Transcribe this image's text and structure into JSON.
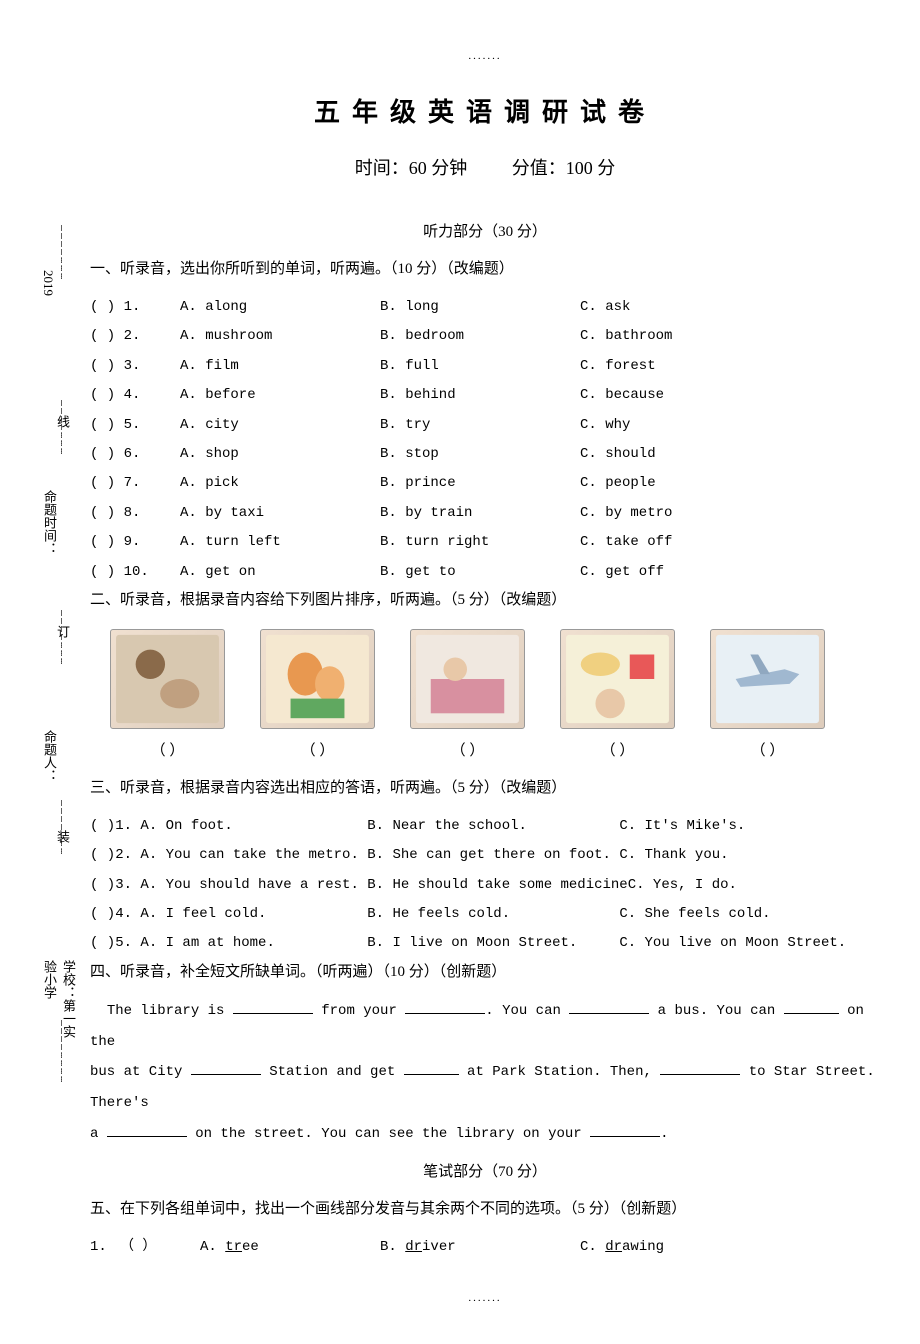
{
  "top_dots": ".......",
  "title": "五年级英语调研试卷",
  "subtitle_time": "时间：60 分钟",
  "subtitle_score": "分值：100 分",
  "listening_header": "听力部分（30 分）",
  "section1_instruction": "一、听录音，选出你所听到的单词，听两遍。（10 分）（改编题）",
  "section1_items": [
    {
      "n": "1",
      "a": "along",
      "b": "long",
      "c": "ask"
    },
    {
      "n": "2",
      "a": "mushroom",
      "b": "bedroom",
      "c": "bathroom"
    },
    {
      "n": "3",
      "a": "film",
      "b": "full",
      "c": "forest"
    },
    {
      "n": "4",
      "a": "before",
      "b": "behind",
      "c": "because"
    },
    {
      "n": "5",
      "a": "city",
      "b": "try",
      "c": "why"
    },
    {
      "n": "6",
      "a": "shop",
      "b": "stop",
      "c": "should"
    },
    {
      "n": "7",
      "a": "pick",
      "b": "prince",
      "c": "people"
    },
    {
      "n": "8",
      "a": "by taxi",
      "b": "by train",
      "c": "by metro"
    },
    {
      "n": "9",
      "a": "turn left",
      "b": "turn right",
      "c": "take off"
    },
    {
      "n": "10",
      "a": "get on",
      "b": "get to",
      "c": "get off"
    }
  ],
  "section2_instruction": "二、听录音，根据录音内容给下列图片排序，听两遍。（5 分）（改编题）",
  "paren_blank": "（     ）",
  "section3_instruction": "三、听录音，根据录音内容选出相应的答语，听两遍。（5 分）（改编题）",
  "section3_items": [
    {
      "n": "1",
      "a": "On foot.",
      "b": "Near the school.",
      "c": "It's Mike's."
    },
    {
      "n": "2",
      "a": "You can take the metro.",
      "b": "She can get there on foot.",
      "c": "Thank you."
    },
    {
      "n": "3",
      "a": "You should have a rest.",
      "b": "He should take some medicine",
      "c": "Yes, I do."
    },
    {
      "n": "4",
      "a": "I feel cold.",
      "b": "He feels cold.",
      "c": "She feels cold."
    },
    {
      "n": "5",
      "a": "I am at home.",
      "b": "I live on Moon Street.",
      "c": "You live on Moon Street."
    }
  ],
  "section4_instruction": "四、听录音，补全短文所缺单词。（听两遍）（10 分）（创新题）",
  "fill_prefix": "The library is ",
  "fill_t1": " from your ",
  "fill_t2": ". You can ",
  "fill_t3": " a bus. You can ",
  "fill_t4": " on the",
  "fill_line2_a": "bus at City ",
  "fill_line2_b": " Station and get ",
  "fill_line2_c": " at Park Station. Then, ",
  "fill_line2_d": " to Star Street. There's",
  "fill_line3_a": "a ",
  "fill_line3_b": " on the street. You can see the library on your ",
  "fill_line3_c": ".",
  "written_header": "笔试部分（70 分）",
  "section5_instruction": "五、在下列各组单词中，找出一个画线部分发音与其余两个不同的选项。（5 分）（创新题）",
  "section5_item": {
    "n": "1.",
    "par": "（     ）",
    "a_pre": "A. ",
    "a_u": "tr",
    "a_post": "ee",
    "b_pre": "B. ",
    "b_u": "dr",
    "b_post": "iver",
    "c_pre": "C. ",
    "c_u": "dr",
    "c_post": "awing"
  },
  "bottom_dots": ".......",
  "side": {
    "school": "学校：第一实验小学",
    "author": "命题人：",
    "time": "命题时间：",
    "year": "2019",
    "zhuang": "装",
    "ding": "订",
    "xian": "线"
  }
}
